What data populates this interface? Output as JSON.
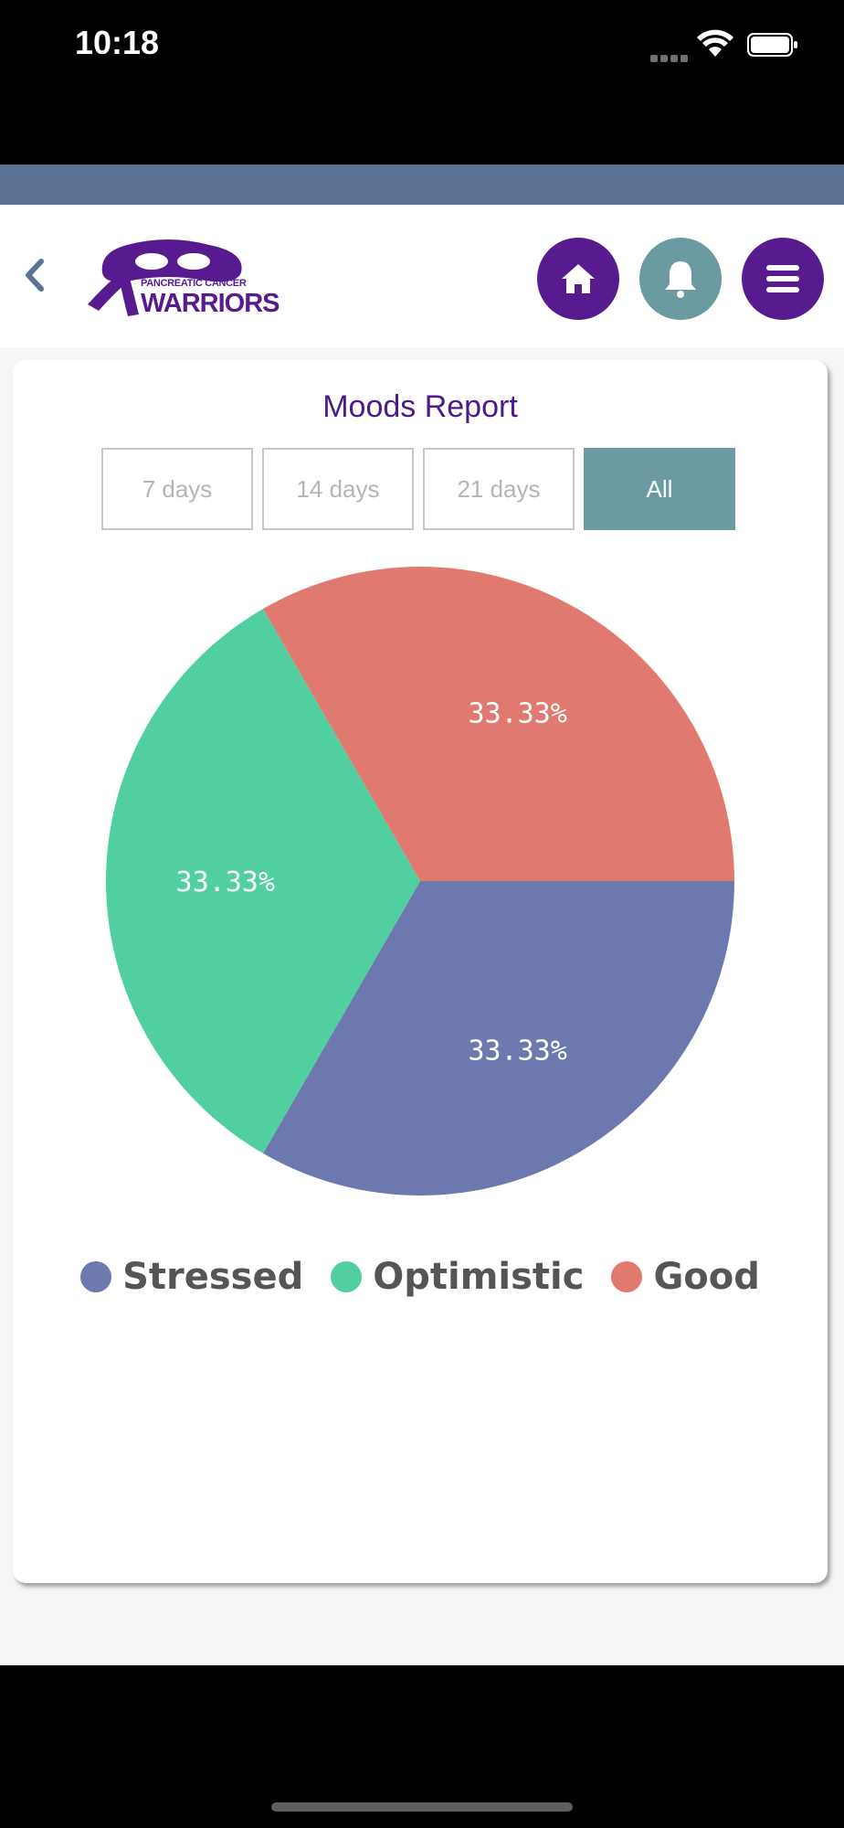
{
  "status_bar": {
    "time": "10:18"
  },
  "header": {
    "logo_text_top": "PANCREATIC CANCER",
    "logo_text_bottom": "WARRIORS"
  },
  "icons": {
    "back": "chevron-left-icon",
    "home": "home-icon",
    "bell": "bell-icon",
    "menu": "hamburger-menu-icon"
  },
  "colors": {
    "brand_purple": "#571b8f",
    "teal": "#6b9aa0",
    "strip": "#5d7393",
    "stressed": "#6d79ae",
    "optimistic": "#52cfa0",
    "good": "#e07a70"
  },
  "report": {
    "title": "Moods Report",
    "filters": [
      {
        "label": "7 days",
        "active": false
      },
      {
        "label": "14 days",
        "active": false
      },
      {
        "label": "21 days",
        "active": false
      },
      {
        "label": "All",
        "active": true
      }
    ]
  },
  "chart_data": {
    "type": "pie",
    "title": "",
    "slices": [
      {
        "name": "Stressed",
        "value": 33.33,
        "label": "33.33%",
        "color": "#6d79ae"
      },
      {
        "name": "Optimistic",
        "value": 33.33,
        "label": "33.33%",
        "color": "#52cfa0"
      },
      {
        "name": "Good",
        "value": 33.33,
        "label": "33.33%",
        "color": "#e07a70"
      }
    ],
    "legend_position": "bottom"
  }
}
